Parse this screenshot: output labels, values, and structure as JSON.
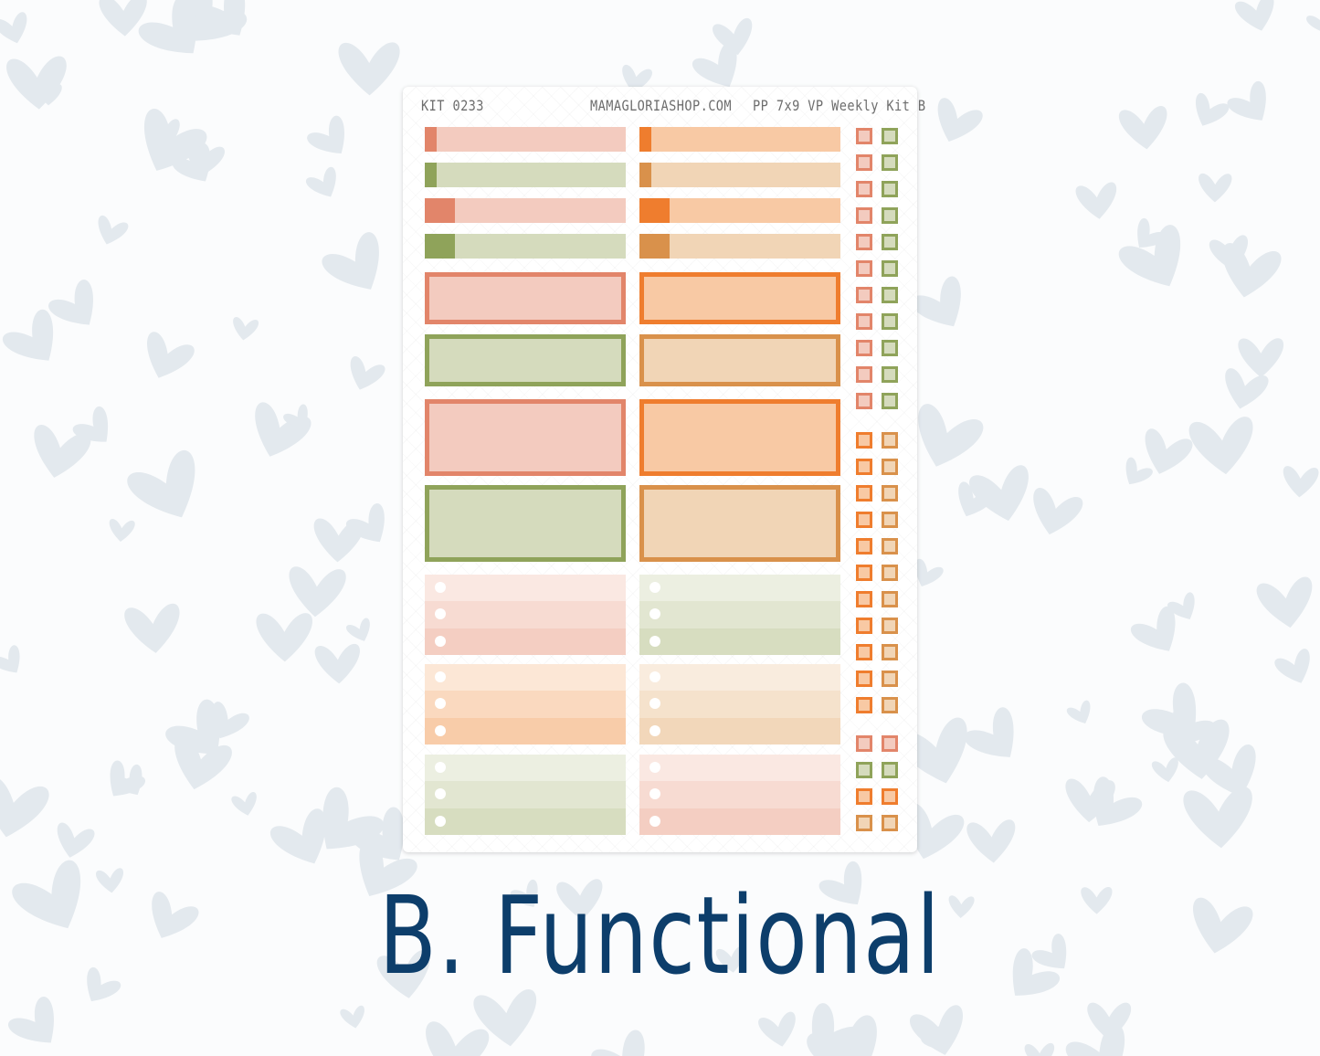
{
  "sheet": {
    "kit_label": "KIT 0233",
    "shop": "MAMAGLORIASHOP.COM",
    "kit_name": "PP 7x9 VP Weekly Kit B"
  },
  "title": "B. Functional",
  "colors": {
    "background_heart": "#e3e9ee",
    "title": "#0d3e6b",
    "salmon": [
      "#e2856a",
      "#f3cbbf"
    ],
    "orange": [
      "#ef7d2e",
      "#f8c9a4"
    ],
    "green": [
      "#8fa35a",
      "#d5dbbd"
    ],
    "tan": [
      "#d9914b",
      "#f1d5b6"
    ]
  },
  "stickers": {
    "flags": [
      [
        "salmon",
        "orange"
      ],
      [
        "green",
        "tan"
      ],
      [
        "salmon",
        "orange"
      ],
      [
        "green",
        "tan"
      ]
    ],
    "boxes": [
      [
        "salmon",
        "orange"
      ],
      [
        "green",
        "tan"
      ],
      [
        "salmon",
        "orange"
      ],
      [
        "green",
        "tan"
      ]
    ],
    "checklists": [
      [
        "salmon",
        "green"
      ],
      [
        "orange",
        "tan"
      ],
      [
        "green",
        "salmon"
      ]
    ],
    "checkboxes": [
      {
        "pair": [
          "salmon",
          "green"
        ],
        "count": 11
      },
      {
        "pair": [
          "orange",
          "tan"
        ],
        "count": 11
      },
      {
        "pair": [
          "salmon",
          "salmon"
        ],
        "count": 1
      },
      {
        "pair": [
          "green",
          "green"
        ],
        "count": 1
      },
      {
        "pair": [
          "orange",
          "orange"
        ],
        "count": 1
      },
      {
        "pair": [
          "tan",
          "tan"
        ],
        "count": 1
      }
    ]
  }
}
